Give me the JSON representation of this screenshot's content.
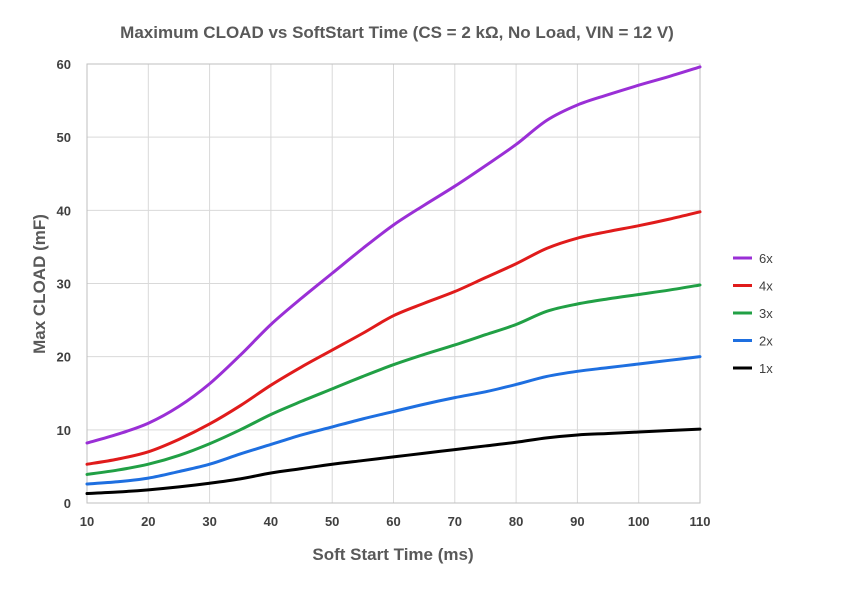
{
  "chart_data": {
    "type": "line",
    "title": "Maximum CLOAD vs SoftStart Time (CS = 2 kΩ, No Load, VIN = 12 V)",
    "xlabel": "Soft Start Time (ms)",
    "ylabel": "Max CLOAD (mF)",
    "xlim": [
      10,
      110
    ],
    "ylim": [
      0,
      60
    ],
    "xticks": [
      10,
      20,
      30,
      40,
      50,
      60,
      70,
      80,
      90,
      100,
      110
    ],
    "yticks": [
      0,
      10,
      20,
      30,
      40,
      50,
      60
    ],
    "grid": true,
    "legend_position": "right",
    "x": [
      10,
      15,
      20,
      25,
      30,
      35,
      40,
      45,
      50,
      55,
      60,
      65,
      70,
      75,
      80,
      85,
      90,
      95,
      100,
      105,
      110
    ],
    "series": [
      {
        "name": "6x",
        "color": "#9a2fd6",
        "values": [
          8.2,
          9.4,
          10.9,
          13.2,
          16.3,
          20.2,
          24.4,
          28.0,
          31.4,
          34.8,
          38.0,
          40.7,
          43.3,
          46.1,
          49.0,
          52.3,
          54.4,
          55.8,
          57.1,
          58.3,
          59.6
        ]
      },
      {
        "name": "4x",
        "color": "#e01b1b",
        "values": [
          5.3,
          6.0,
          7.0,
          8.7,
          10.8,
          13.3,
          16.1,
          18.6,
          20.9,
          23.2,
          25.6,
          27.3,
          28.9,
          30.8,
          32.7,
          34.8,
          36.2,
          37.1,
          37.9,
          38.8,
          39.8
        ]
      },
      {
        "name": "3x",
        "color": "#21a045",
        "values": [
          3.9,
          4.5,
          5.3,
          6.5,
          8.1,
          10.0,
          12.1,
          13.9,
          15.6,
          17.3,
          18.9,
          20.3,
          21.6,
          23.0,
          24.4,
          26.2,
          27.2,
          27.9,
          28.5,
          29.1,
          29.8
        ]
      },
      {
        "name": "2x",
        "color": "#1e6fe0",
        "values": [
          2.6,
          2.9,
          3.4,
          4.3,
          5.3,
          6.7,
          8.0,
          9.3,
          10.4,
          11.5,
          12.5,
          13.5,
          14.4,
          15.2,
          16.2,
          17.3,
          18.0,
          18.5,
          19.0,
          19.5,
          20.0
        ]
      },
      {
        "name": "1x",
        "color": "#000000",
        "values": [
          1.3,
          1.5,
          1.8,
          2.2,
          2.7,
          3.3,
          4.1,
          4.7,
          5.3,
          5.8,
          6.3,
          6.8,
          7.3,
          7.8,
          8.3,
          8.9,
          9.3,
          9.5,
          9.7,
          9.9,
          10.1
        ]
      }
    ]
  }
}
